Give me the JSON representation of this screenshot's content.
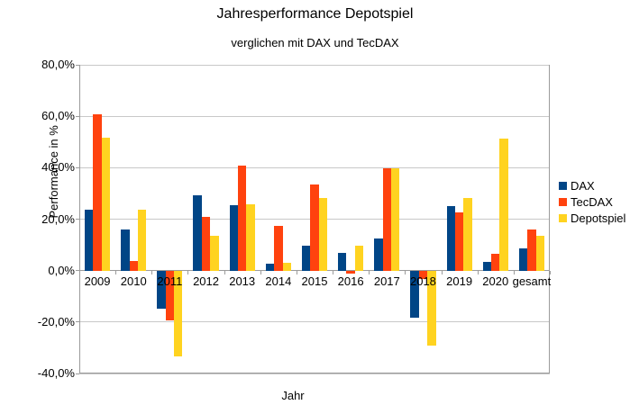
{
  "title": "Jahresperformance Depotspiel",
  "subtitle": "verglichen mit DAX und TecDAX",
  "chart_data": {
    "type": "bar",
    "title": "Jahresperformance Depotspiel",
    "subtitle": "verglichen mit DAX und TecDAX",
    "xlabel": "Jahr",
    "ylabel": "Performance in %",
    "categories": [
      "2009",
      "2010",
      "2011",
      "2012",
      "2013",
      "2014",
      "2015",
      "2016",
      "2017",
      "2018",
      "2019",
      "2020",
      "gesamt"
    ],
    "series": [
      {
        "name": "DAX",
        "color": "#004586",
        "values": [
          23.8,
          16.0,
          -14.7,
          29.1,
          25.5,
          2.7,
          9.6,
          6.9,
          12.5,
          -18.3,
          25.2,
          3.3,
          8.8
        ]
      },
      {
        "name": "TecDAX",
        "color": "#ff420e",
        "values": [
          60.8,
          3.8,
          -19.5,
          20.9,
          40.9,
          17.5,
          33.5,
          -1.0,
          39.6,
          -3.1,
          22.5,
          6.4,
          16.1
        ]
      },
      {
        "name": "Depotspiel",
        "color": "#ffd320",
        "values": [
          51.5,
          23.8,
          -33.5,
          13.5,
          25.7,
          2.9,
          28.2,
          9.8,
          39.8,
          -29.0,
          28.3,
          51.4,
          13.7
        ]
      }
    ],
    "ylim": [
      -40,
      80
    ],
    "ytick_step": 20,
    "ytick_labels": [
      "80,0%",
      "60,0%",
      "40,0%",
      "20,0%",
      "0,0%",
      "-20,0%",
      "-40,0%"
    ],
    "grid": true,
    "legend_position": "right",
    "value_suffix": "%"
  }
}
